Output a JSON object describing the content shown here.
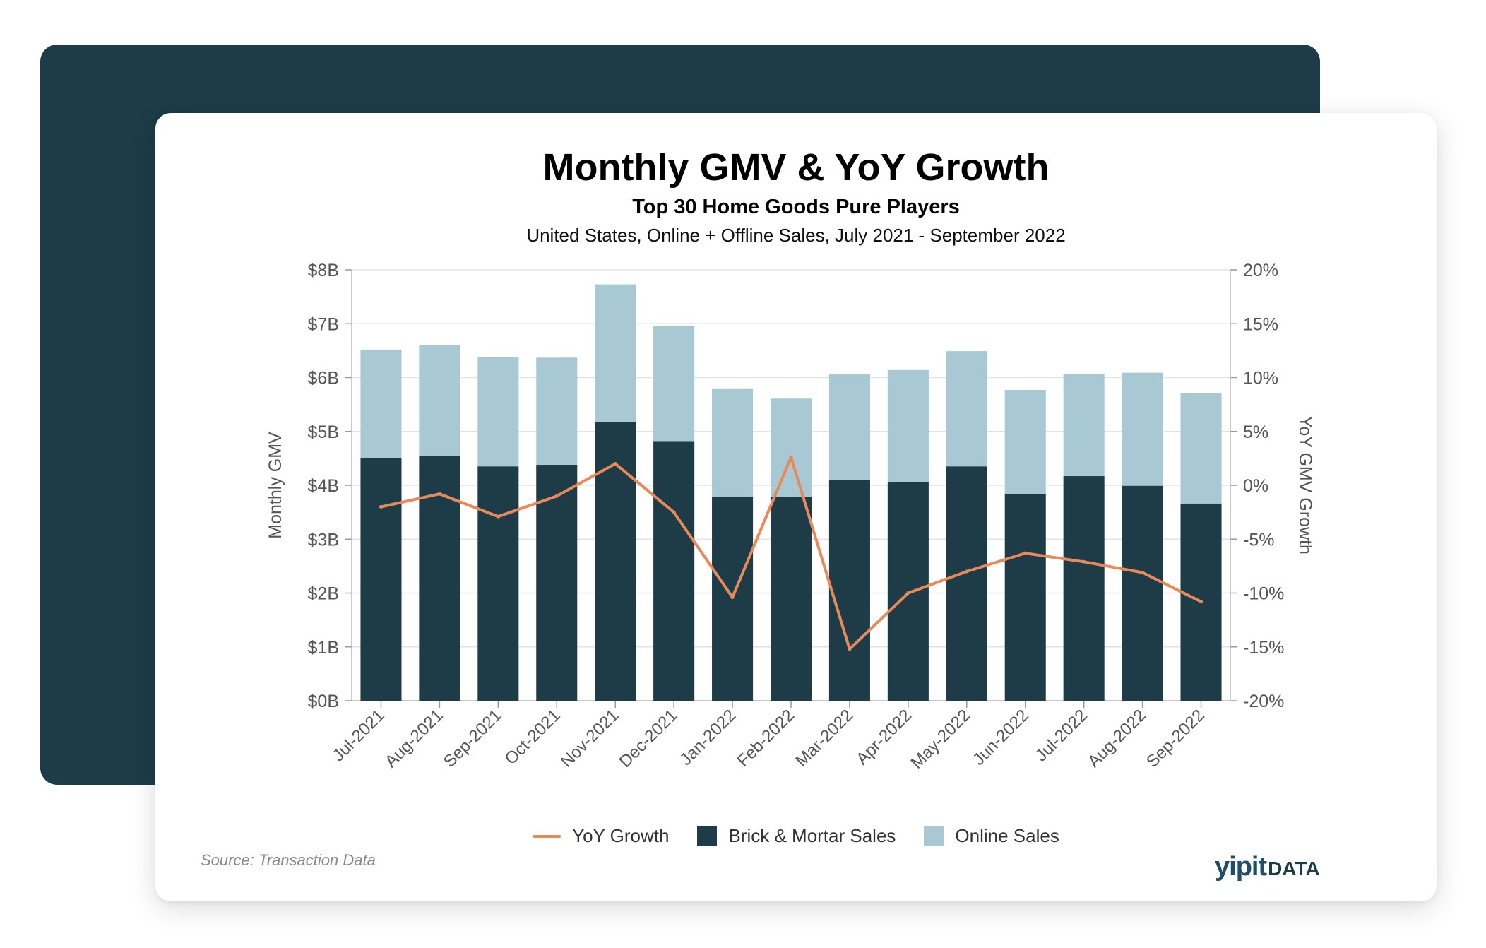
{
  "title": "Monthly GMV & YoY Growth",
  "subtitle": "Top 30 Home Goods Pure Players",
  "subtitle2": "United States, Online + Offline Sales, July 2021 - September 2022",
  "source": "Source: Transaction Data",
  "logo": {
    "part1": "yipit",
    "part2": "DATA"
  },
  "colors": {
    "brick": "#1d3c47",
    "online": "#a8c8d3",
    "yoy": "#e8895a",
    "background_panel": "#1d3c47"
  },
  "legend": [
    {
      "label": "YoY Growth",
      "kind": "line",
      "color": "#e8895a"
    },
    {
      "label": "Brick & Mortar Sales",
      "kind": "swatch",
      "color": "#1d3c47"
    },
    {
      "label": "Online Sales",
      "kind": "swatch",
      "color": "#a8c8d3"
    }
  ],
  "chart_data": {
    "type": "bar",
    "stacked": true,
    "categories": [
      "Jul-2021",
      "Aug-2021",
      "Sep-2021",
      "Oct-2021",
      "Nov-2021",
      "Dec-2021",
      "Jan-2022",
      "Feb-2022",
      "Mar-2022",
      "Apr-2022",
      "May-2022",
      "Jun-2022",
      "Jul-2022",
      "Aug-2022",
      "Sep-2022"
    ],
    "series": [
      {
        "name": "Brick & Mortar Sales",
        "type": "bar",
        "axis": "left",
        "values": [
          4.5,
          4.55,
          4.35,
          4.38,
          5.18,
          4.82,
          3.78,
          3.79,
          4.1,
          4.06,
          4.35,
          3.83,
          4.17,
          3.99,
          3.66
        ]
      },
      {
        "name": "Online Sales",
        "type": "bar",
        "axis": "left",
        "values": [
          2.02,
          2.06,
          2.03,
          1.99,
          2.55,
          2.14,
          2.02,
          1.82,
          1.96,
          2.08,
          2.14,
          1.94,
          1.9,
          2.1,
          2.05
        ]
      },
      {
        "name": "YoY Growth",
        "type": "line",
        "axis": "right",
        "values": [
          -2.0,
          -0.8,
          -2.9,
          -1.0,
          2.0,
          -2.5,
          -10.4,
          2.6,
          -15.2,
          -10.0,
          -8.0,
          -6.3,
          -7.1,
          -8.1,
          -10.8
        ]
      }
    ],
    "ylabel": "Monthly GMV",
    "y2label": "YoY GMV Growth",
    "ylim": [
      0,
      8
    ],
    "y2lim": [
      -20,
      20
    ],
    "yticks": [
      "$0B",
      "$1B",
      "$2B",
      "$3B",
      "$4B",
      "$5B",
      "$6B",
      "$7B",
      "$8B"
    ],
    "y2ticks": [
      "-20%",
      "-15%",
      "-10%",
      "-5%",
      "0%",
      "5%",
      "10%",
      "15%",
      "20%"
    ],
    "grid": true,
    "legend_position": "bottom"
  }
}
